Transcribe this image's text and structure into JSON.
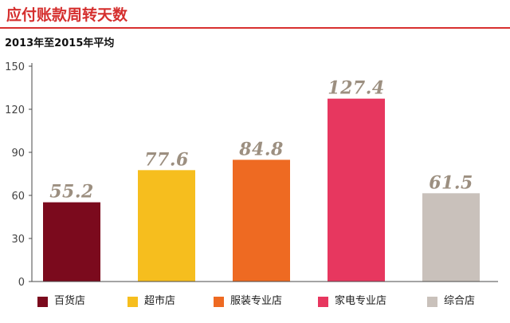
{
  "chart_data": {
    "type": "bar",
    "title": "应付账款周转天数",
    "subtitle": "2013年至2015年平均",
    "categories": [
      "百货店",
      "超市店",
      "服装专业店",
      "家电专业店",
      "综合店"
    ],
    "values": [
      55.2,
      77.6,
      84.8,
      127.4,
      61.5
    ],
    "colors": [
      "#7b0a1d",
      "#f6be1e",
      "#ee6a22",
      "#e7375f",
      "#c9c1bb"
    ],
    "ylim": [
      0,
      150
    ],
    "yticks": [
      0,
      30,
      60,
      90,
      120,
      150
    ],
    "grid": false,
    "legend_placement": "bottom"
  },
  "style": {
    "title_color": "#d52f2e",
    "rule_color": "#d8302f",
    "data_label_color": "#9c8f80"
  }
}
